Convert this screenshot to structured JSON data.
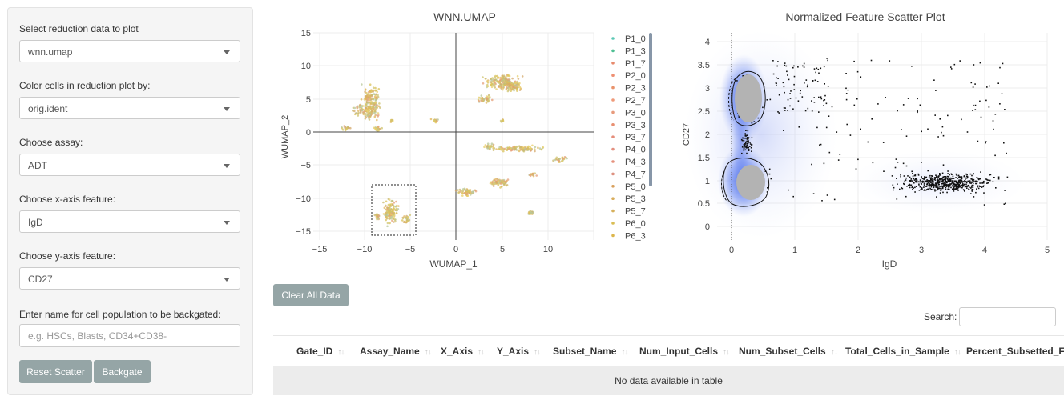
{
  "sidebar": {
    "reduction": {
      "label": "Select reduction data to plot",
      "value": "wnn.umap"
    },
    "color_by": {
      "label": "Color cells in reduction plot by:",
      "value": "orig.ident"
    },
    "assay": {
      "label": "Choose assay:",
      "value": "ADT"
    },
    "x_feature": {
      "label": "Choose x-axis feature:",
      "value": "IgD"
    },
    "y_feature": {
      "label": "Choose y-axis feature:",
      "value": "CD27"
    },
    "population": {
      "label": "Enter name for cell population to be backgated:",
      "placeholder": "e.g. HSCs, Blasts, CD34+CD38-"
    },
    "reset_label": "Reset Scatter",
    "backgate_label": "Backgate"
  },
  "umap": {
    "title": "WNN.UMAP",
    "xlabel": "WUMAP_1",
    "ylabel": "WUMAP_2",
    "xticks": [
      "−15",
      "−10",
      "−5",
      "0",
      "5",
      "10"
    ],
    "yticks": [
      "15",
      "10",
      "5",
      "0",
      "−5",
      "−10",
      "−15"
    ],
    "legend": [
      "P1_0",
      "P1_3",
      "P1_7",
      "P2_0",
      "P2_3",
      "P2_7",
      "P3_0",
      "P3_3",
      "P3_7",
      "P4_0",
      "P4_3",
      "P4_7",
      "P5_0",
      "P5_3",
      "P5_7",
      "P6_0",
      "P6_3"
    ],
    "legend_colors": [
      "#5cc8b5",
      "#4fbf93",
      "#e78a6d",
      "#ee8f72",
      "#e9936c",
      "#ef9a7a",
      "#e79a7c",
      "#e88f71",
      "#e58d7a",
      "#e39080",
      "#e5917d",
      "#dd9281",
      "#d8a05c",
      "#d9ae5e",
      "#d6b05c",
      "#d9bd54",
      "#dcb64c"
    ]
  },
  "scatter": {
    "title": "Normalized Feature Scatter Plot",
    "xlabel": "IgD",
    "ylabel": "CD27",
    "xticks": [
      "0",
      "1",
      "2",
      "3",
      "4",
      "5"
    ],
    "yticks": [
      "4",
      "3.5",
      "3",
      "2.5",
      "2",
      "1.5",
      "1",
      "0.5",
      "0"
    ]
  },
  "clear_label": "Clear All Data",
  "search": {
    "label": "Search:",
    "value": ""
  },
  "table": {
    "columns": [
      "Gate_ID",
      "Assay_Name",
      "X_Axis",
      "Y_Axis",
      "Subset_Name",
      "Num_Input_Cells",
      "Num_Subset_Cells",
      "Total_Cells_in_Sample",
      "Percent_Subsetted_F"
    ],
    "empty_text": "No data available in table"
  }
}
